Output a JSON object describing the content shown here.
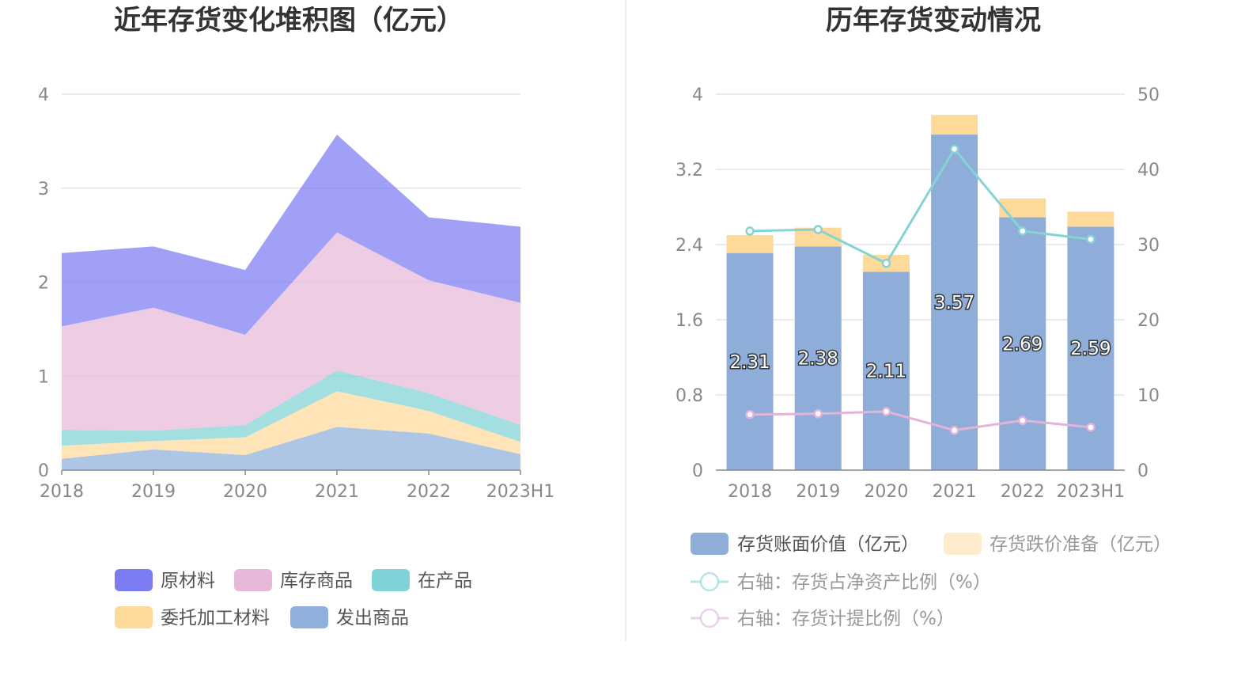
{
  "chart_data": [
    {
      "type": "area",
      "title": "近年存货变化堆积图（亿元）",
      "categories": [
        "2018",
        "2019",
        "2020",
        "2021",
        "2022",
        "2023H1"
      ],
      "ylim": [
        0,
        4
      ],
      "yticks": [
        "0",
        "1",
        "2",
        "3",
        "4"
      ],
      "stacked": true,
      "grid": true,
      "legend_position": "bottom",
      "series": [
        {
          "name": "发出商品",
          "color": "#8fb0dc",
          "values": [
            0.12,
            0.22,
            0.16,
            0.46,
            0.39,
            0.17
          ]
        },
        {
          "name": "委托加工材料",
          "color": "#fdd99a",
          "values": [
            0.14,
            0.09,
            0.19,
            0.38,
            0.24,
            0.13
          ]
        },
        {
          "name": "在产品",
          "color": "#7fd3d6",
          "values": [
            0.17,
            0.11,
            0.13,
            0.22,
            0.19,
            0.18
          ]
        },
        {
          "name": "库存商品",
          "color": "#e7b8d8",
          "values": [
            1.1,
            1.31,
            0.96,
            1.47,
            1.2,
            1.3
          ]
        },
        {
          "name": "原材料",
          "color": "#7b7bf2",
          "values": [
            0.78,
            0.65,
            0.69,
            1.04,
            0.67,
            0.81
          ]
        }
      ],
      "legend_order": [
        "原材料",
        "库存商品",
        "在产品",
        "委托加工材料",
        "发出商品"
      ]
    },
    {
      "type": "bar",
      "title": "历年存货变动情况",
      "categories": [
        "2018",
        "2019",
        "2020",
        "2021",
        "2022",
        "2023H1"
      ],
      "ylim": [
        0,
        4
      ],
      "yticks": [
        "0",
        "0.8",
        "1.6",
        "2.4",
        "3.2",
        "4"
      ],
      "y2lim": [
        0,
        50
      ],
      "y2ticks": [
        "0",
        "10",
        "20",
        "30",
        "40",
        "50"
      ],
      "grid": true,
      "legend_position": "bottom",
      "series": [
        {
          "name": "存货账面价值（亿元）",
          "type": "bar",
          "axis": "left",
          "color": "#8eadd9",
          "values": [
            2.31,
            2.38,
            2.11,
            3.57,
            2.69,
            2.59
          ],
          "labels": [
            "2.31",
            "2.38",
            "2.11",
            "3.57",
            "2.69",
            "2.59"
          ]
        },
        {
          "name": "存货跌价准备（亿元）",
          "type": "bar",
          "axis": "left",
          "color": "#fdd99a",
          "values": [
            0.19,
            0.2,
            0.18,
            0.21,
            0.2,
            0.16
          ]
        },
        {
          "name": "右轴：存货占净资产比例（%）",
          "type": "line",
          "axis": "right",
          "color": "#85d3d4",
          "values": [
            31.8,
            32.0,
            27.5,
            42.7,
            31.8,
            30.7
          ]
        },
        {
          "name": "右轴：存货计提比例（%）",
          "type": "line",
          "axis": "right",
          "color": "#e3b3d8",
          "values": [
            7.4,
            7.5,
            7.8,
            5.3,
            6.6,
            5.7
          ]
        }
      ]
    }
  ]
}
